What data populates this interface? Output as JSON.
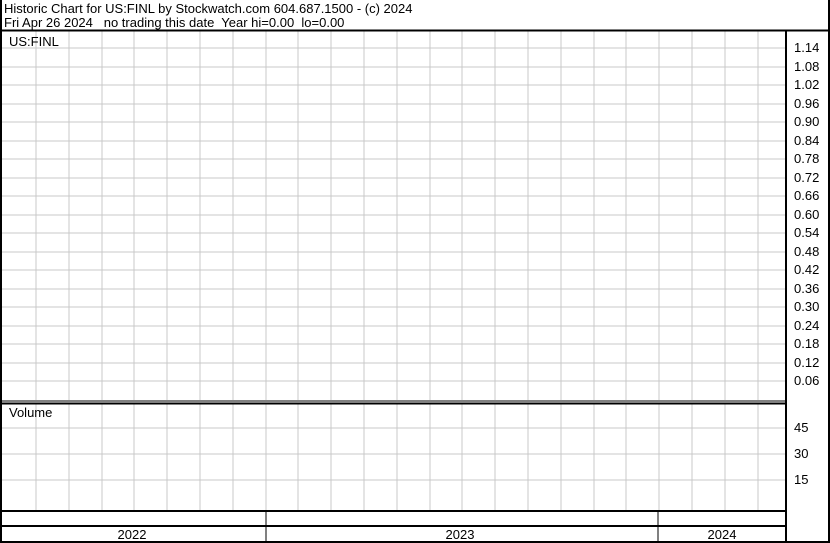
{
  "header": {
    "line1": "Historic Chart for US:FINL by Stockwatch.com 604.687.1500 - (c) 2024",
    "line2": "Fri Apr 26 2024   no trading this date  Year hi=0.00  lo=0.00"
  },
  "chart_data": [
    {
      "type": "line",
      "title": "US:FINL",
      "y_ticks": [
        "1.14",
        "1.08",
        "1.02",
        "0.96",
        "0.90",
        "0.84",
        "0.78",
        "0.72",
        "0.66",
        "0.60",
        "0.54",
        "0.48",
        "0.42",
        "0.36",
        "0.30",
        "0.24",
        "0.18",
        "0.12",
        "0.06"
      ],
      "ylim": [
        0,
        1.14
      ],
      "series": [],
      "grid": true
    },
    {
      "type": "bar",
      "title": "Volume",
      "y_ticks": [
        "45",
        "30",
        "15"
      ],
      "ylim": [
        0,
        45
      ],
      "values": [],
      "grid": true
    }
  ],
  "x_axis": {
    "years": [
      "2022",
      "2023",
      "2024"
    ]
  },
  "colors": {
    "grid": "#c8c8c8",
    "border": "#000000",
    "background": "#ffffff"
  }
}
